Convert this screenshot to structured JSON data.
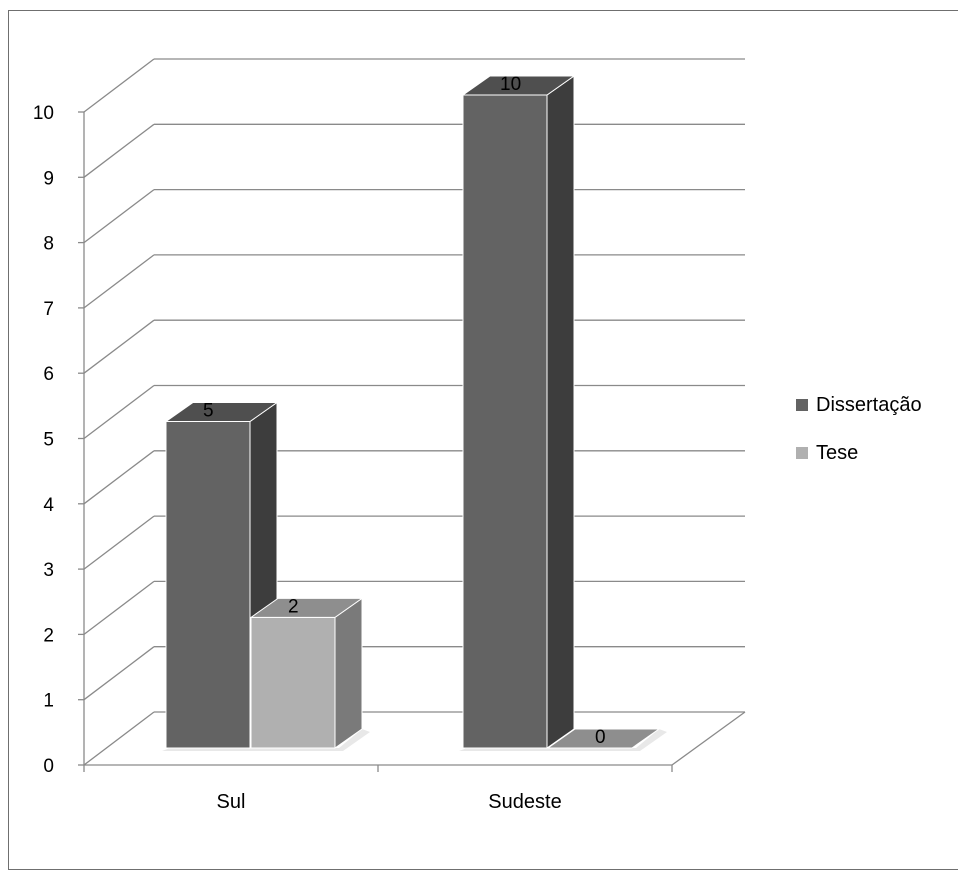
{
  "chart_data": {
    "type": "bar",
    "style": "3d-clustered-column",
    "categories": [
      "Sul",
      "Sudeste"
    ],
    "series": [
      {
        "name": "Dissertação",
        "values": [
          5,
          10
        ],
        "color": "#636363",
        "side_color": "#3d3d3d",
        "top_color": "#4f4f4f"
      },
      {
        "name": "Tese",
        "values": [
          2,
          0
        ],
        "color": "#b0b0b0",
        "side_color": "#7a7a7a",
        "top_color": "#8e8e8e"
      }
    ],
    "y_ticks": [
      "0",
      "1",
      "2",
      "3",
      "4",
      "5",
      "6",
      "7",
      "8",
      "9",
      "10"
    ],
    "ylim": [
      0,
      10
    ],
    "data_labels": true,
    "grid": true,
    "legend_position": "right",
    "title": "",
    "xlabel": "",
    "ylabel": ""
  }
}
